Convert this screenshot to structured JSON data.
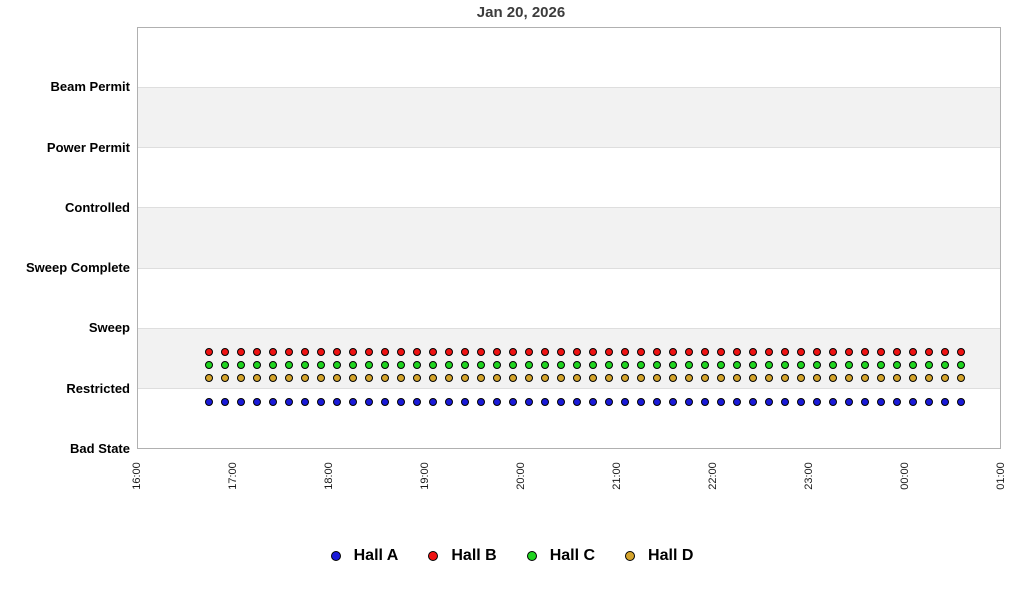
{
  "title": "Jan 20, 2026",
  "chart_data": {
    "type": "scatter",
    "title": "Jan 20, 2026",
    "y_categories_top_to_bottom": [
      "Beam Permit",
      "Power Permit",
      "Controlled",
      "Sweep Complete",
      "Sweep",
      "Restricted",
      "Bad State"
    ],
    "x_ticks": [
      "16:00",
      "17:00",
      "18:00",
      "19:00",
      "20:00",
      "21:00",
      "22:00",
      "23:00",
      "00:00",
      "01:00"
    ],
    "x_axis": {
      "start": "16:00",
      "end": "01:00",
      "tick_interval": "1 hour",
      "label_rotation_deg": -90
    },
    "grid": "alternating horizontal gray/white bands per category",
    "legend_position": "bottom",
    "marker": "filled-circle-black-outline",
    "band_fill": "#f2f2f2",
    "times": [
      "16:45",
      "16:55",
      "17:05",
      "17:15",
      "17:25",
      "17:35",
      "17:45",
      "17:55",
      "18:05",
      "18:15",
      "18:25",
      "18:35",
      "18:45",
      "18:55",
      "19:05",
      "19:15",
      "19:25",
      "19:35",
      "19:45",
      "19:55",
      "20:05",
      "20:15",
      "20:25",
      "20:35",
      "20:45",
      "20:55",
      "21:05",
      "21:15",
      "21:25",
      "21:35",
      "21:45",
      "21:55",
      "22:05",
      "22:15",
      "22:25",
      "22:35",
      "22:45",
      "22:55",
      "23:05",
      "23:15",
      "23:25",
      "23:35",
      "23:45",
      "23:55",
      "00:05",
      "00:15",
      "00:25",
      "00:35"
    ],
    "series": [
      {
        "name": "Hall A",
        "color": "#1a1ad9",
        "state_all_points": "Restricted"
      },
      {
        "name": "Hall B",
        "color": "#ef1212",
        "state_all_points": "Restricted"
      },
      {
        "name": "Hall C",
        "color": "#20d320",
        "state_all_points": "Restricted"
      },
      {
        "name": "Hall D",
        "color": "#d5a42c",
        "state_all_points": "Restricted"
      }
    ]
  },
  "legend": {
    "items": [
      {
        "label": "Hall A",
        "color": "#1a1ad9"
      },
      {
        "label": "Hall B",
        "color": "#ef1212"
      },
      {
        "label": "Hall C",
        "color": "#20d320"
      },
      {
        "label": "Hall D",
        "color": "#d5a42c"
      }
    ]
  }
}
